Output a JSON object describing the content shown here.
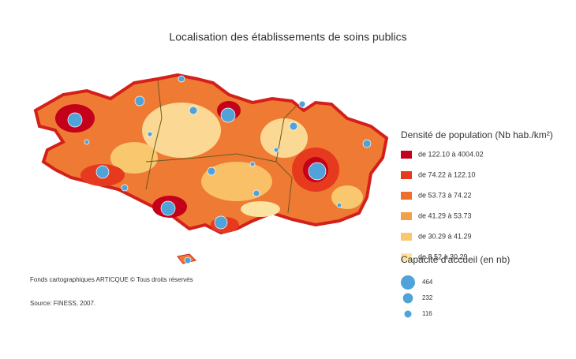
{
  "title": "Localisation des établissements de soins publics",
  "legend_density": {
    "title": "Densité de population (Nb hab./km²)",
    "items": [
      {
        "label": "de 122.10 à 4004.02",
        "color": "#c4001a"
      },
      {
        "label": "de 74.22 à 122.10",
        "color": "#e63a1e"
      },
      {
        "label": "de 53.73 à 74.22",
        "color": "#ee6e2e"
      },
      {
        "label": "de 41.29 à 53.73",
        "color": "#f4a04a"
      },
      {
        "label": "de 30.29 à 41.29",
        "color": "#f9c86e"
      },
      {
        "label": "de 8.52 à 30.29",
        "color": "#fce3a0"
      }
    ]
  },
  "legend_capacity": {
    "title": "Capacité d'accueil (en nb)",
    "color": "#4fa3d8",
    "values": [
      464,
      232,
      116
    ]
  },
  "credits": "Fonds cartographiques ARTICQUE © Tous droits réservés",
  "source": "Source: FINESS, 2007."
}
